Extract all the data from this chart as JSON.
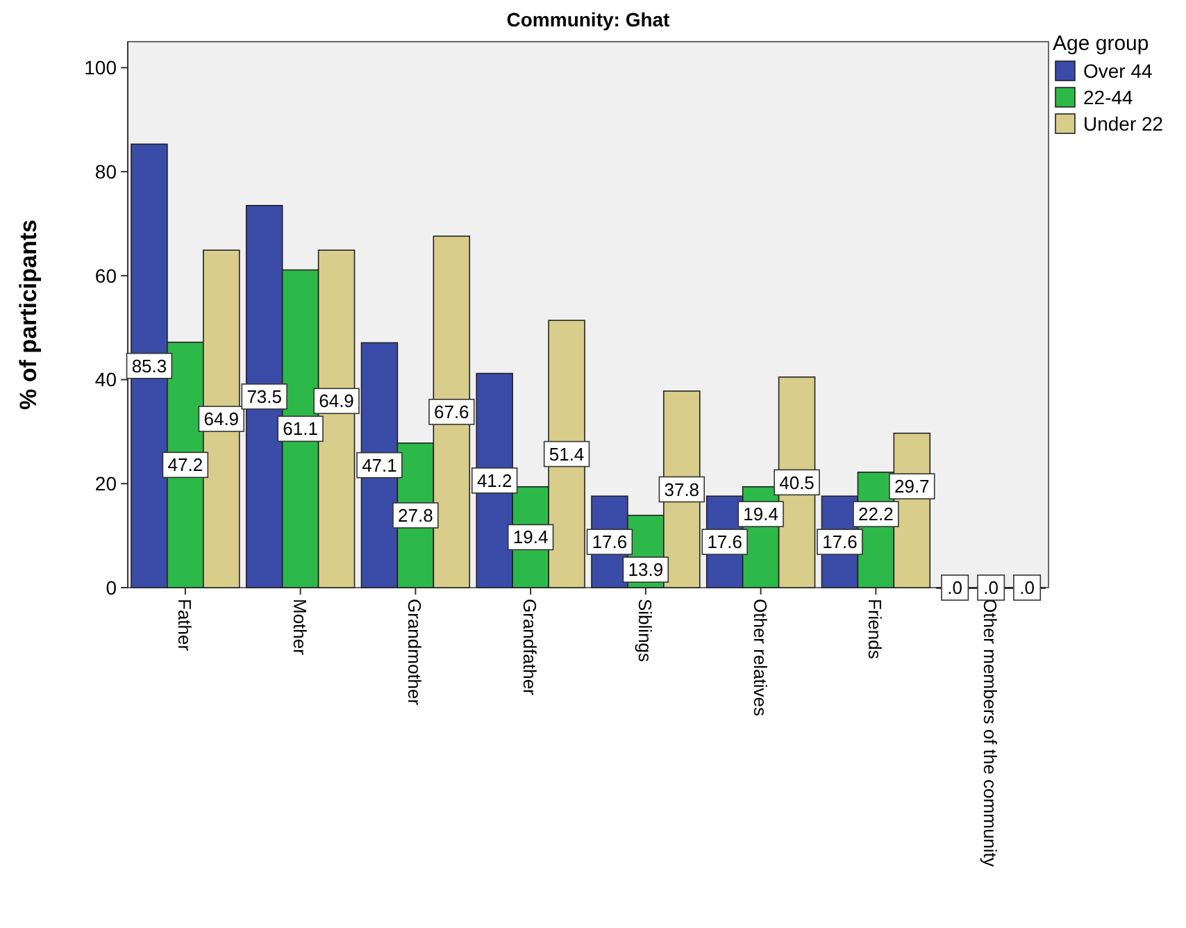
{
  "chart_data": {
    "type": "bar",
    "title": "Community: Ghat",
    "ylabel": "% of participants",
    "legend_title": "Age group",
    "legend": "top right",
    "grid": false,
    "categories": [
      "Father",
      "Mother",
      "Grandmother",
      "Grandfather",
      "Siblings",
      "Other relatives",
      "Friends",
      "Other members of the community"
    ],
    "ylim": [
      0,
      105
    ],
    "yticks": [
      0,
      20,
      40,
      60,
      80,
      100
    ],
    "series": [
      {
        "name": "Over 44",
        "color": "#3b4ba8",
        "values": [
          85.3,
          73.5,
          47.1,
          41.2,
          17.6,
          17.6,
          17.6,
          0
        ],
        "value_labels": [
          "85.3",
          "73.5",
          "47.1",
          "41.2",
          "17.6",
          "17.6",
          "17.6",
          ".0"
        ]
      },
      {
        "name": "22-44",
        "color": "#2db84a",
        "values": [
          47.2,
          61.1,
          27.8,
          19.4,
          13.9,
          19.4,
          22.2,
          0
        ],
        "value_labels": [
          "47.2",
          "61.1",
          "27.8",
          "19.4",
          "13.9",
          "19.4",
          "22.2",
          ".0"
        ]
      },
      {
        "name": "Under 22",
        "color": "#d8cd8a",
        "values": [
          64.9,
          64.9,
          67.6,
          51.4,
          37.8,
          40.5,
          29.7,
          0
        ],
        "value_labels": [
          "64.9",
          "64.9",
          "67.6",
          "51.4",
          "37.8",
          "40.5",
          "29.7",
          ".0"
        ]
      }
    ]
  }
}
